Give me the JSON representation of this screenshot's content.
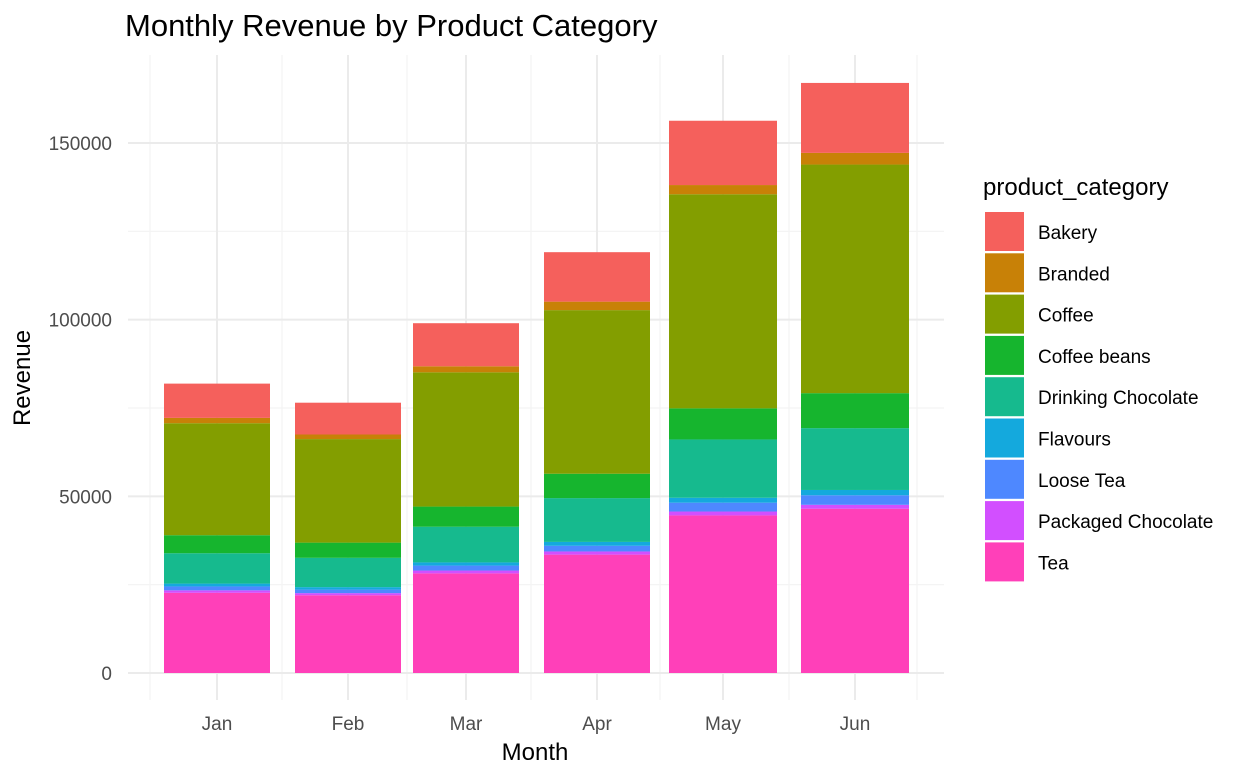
{
  "chart_data": {
    "type": "bar",
    "stacked": true,
    "title": "Monthly Revenue by Product Category",
    "xlabel": "Month",
    "ylabel": "Revenue",
    "ylim": [
      0,
      170000
    ],
    "yticks": [
      0,
      50000,
      100000,
      150000
    ],
    "categories": [
      "Jan",
      "Feb",
      "Mar",
      "Apr",
      "May",
      "Jun"
    ],
    "legend_title": "product_category",
    "legend_position": "right",
    "grid": true,
    "series": [
      {
        "name": "Tea",
        "color": "#FF40B9",
        "values": [
          22700,
          22000,
          28200,
          33500,
          44600,
          46500
        ]
      },
      {
        "name": "Packaged Chocolate",
        "color": "#D24FFF",
        "values": [
          700,
          600,
          800,
          900,
          1100,
          1100
        ]
      },
      {
        "name": "Loose Tea",
        "color": "#4E88FF",
        "values": [
          1100,
          1000,
          1400,
          1600,
          2500,
          2700
        ]
      },
      {
        "name": "Flavours",
        "color": "#14A9DD",
        "values": [
          800,
          700,
          900,
          1100,
          1400,
          1500
        ]
      },
      {
        "name": "Drinking Chocolate",
        "color": "#16BA8E",
        "values": [
          8600,
          8300,
          10100,
          12400,
          16500,
          17500
        ]
      },
      {
        "name": "Coffee beans",
        "color": "#16B52E",
        "values": [
          5100,
          4300,
          5700,
          6900,
          8800,
          9900
        ]
      },
      {
        "name": "Coffee",
        "color": "#839E00",
        "values": [
          31700,
          29300,
          38000,
          46300,
          60600,
          64700
        ]
      },
      {
        "name": "Branded",
        "color": "#C88107",
        "values": [
          1500,
          1300,
          1700,
          2400,
          2600,
          3300
        ]
      },
      {
        "name": "Bakery",
        "color": "#F5605C",
        "values": [
          9700,
          9000,
          12200,
          14000,
          18200,
          19800
        ]
      }
    ]
  },
  "legend_order": [
    "Bakery",
    "Branded",
    "Coffee",
    "Coffee beans",
    "Drinking Chocolate",
    "Flavours",
    "Loose Tea",
    "Packaged Chocolate",
    "Tea"
  ]
}
